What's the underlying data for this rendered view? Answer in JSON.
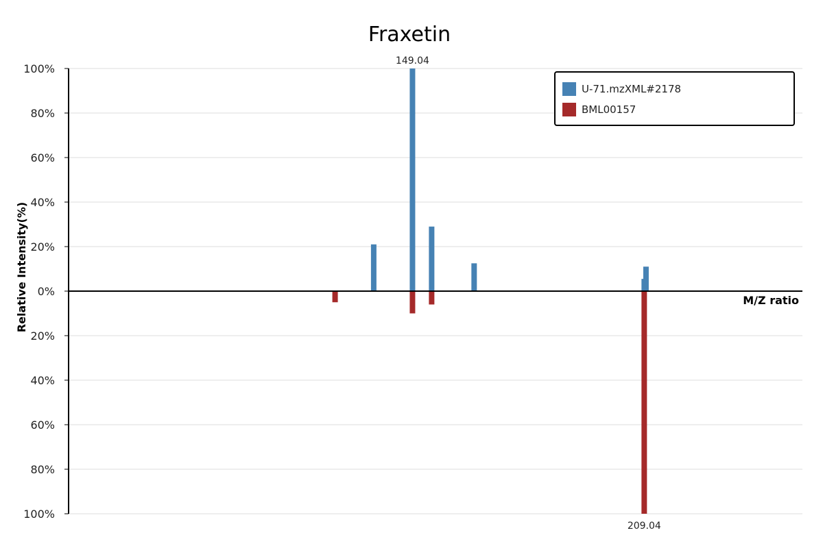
{
  "chart_data": {
    "type": "bar",
    "title": "Fraxetin",
    "xlabel": "M/Z ratio",
    "ylabel": "Relative Intensity(%)",
    "ylim": [
      -100,
      100
    ],
    "y_tick_labels": [
      "100%",
      "80%",
      "60%",
      "40%",
      "20%",
      "0%",
      "20%",
      "40%",
      "60%",
      "80%",
      "100%"
    ],
    "y_tick_values": [
      100,
      80,
      60,
      40,
      20,
      0,
      -20,
      -40,
      -60,
      -80,
      -100
    ],
    "xlim": [
      60,
      250
    ],
    "grid": true,
    "legend_position": "top-right",
    "series": [
      {
        "name": "U-71.mzXML#2178",
        "color": "#4682b4",
        "direction": "up",
        "points": [
          {
            "mz": 139,
            "intensity": 21
          },
          {
            "mz": 149.04,
            "intensity": 100,
            "label": "149.04"
          },
          {
            "mz": 154,
            "intensity": 29
          },
          {
            "mz": 165,
            "intensity": 12.5
          },
          {
            "mz": 209.5,
            "intensity": 11
          },
          {
            "mz": 209.04,
            "intensity": 5.5
          }
        ]
      },
      {
        "name": "BML00157",
        "color": "#a52a2a",
        "direction": "down",
        "points": [
          {
            "mz": 129,
            "intensity": 5
          },
          {
            "mz": 149.04,
            "intensity": 10
          },
          {
            "mz": 154,
            "intensity": 6
          },
          {
            "mz": 209.04,
            "intensity": 100,
            "label": "209.04"
          }
        ]
      }
    ]
  }
}
